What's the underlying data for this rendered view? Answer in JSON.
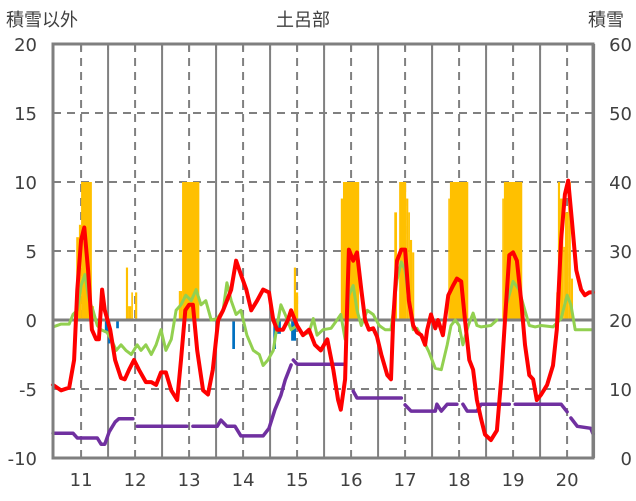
{
  "chart_data": {
    "type": "line",
    "title": "土呂部",
    "ylabel_left": "積雪以外",
    "ylabel_right": "積雪",
    "xlim": [
      10.48,
      20.48
    ],
    "ylim_left": [
      -10,
      20
    ],
    "ylim_right": [
      0,
      60
    ],
    "x_ticks": [
      11,
      12,
      13,
      14,
      15,
      16,
      17,
      18,
      19,
      20
    ],
    "x_tick_labels": [
      "11",
      "12",
      "13",
      "14",
      "15",
      "16",
      "17",
      "18",
      "19",
      "20"
    ],
    "y_left_ticks": [
      -10,
      -5,
      0,
      5,
      10,
      15,
      20
    ],
    "y_left_tick_labels": [
      "-10",
      "-5",
      "0",
      "5",
      "10",
      "15",
      "20"
    ],
    "y_right_ticks": [
      0,
      10,
      20,
      30,
      40,
      50,
      60
    ],
    "y_right_tick_labels": [
      "0",
      "10",
      "20",
      "30",
      "40",
      "50",
      "60"
    ],
    "grid": true,
    "colors": {
      "orange_bars": "#ffc000",
      "blue_bars": "#0070c0",
      "red": "#ff0000",
      "green": "#92d050",
      "purple": "#7030a0",
      "axis": "#7f7f7f"
    },
    "orange_bars": [
      [
        10.91,
        10.96,
        6
      ],
      [
        10.96,
        11.0,
        6.9
      ],
      [
        11.0,
        11.2,
        10
      ],
      [
        11.2,
        11.24,
        1
      ],
      [
        11.83,
        11.87,
        3.8
      ],
      [
        11.87,
        11.93,
        1
      ],
      [
        11.93,
        11.96,
        2
      ],
      [
        12.0,
        12.04,
        2
      ],
      [
        12.81,
        12.87,
        2.1
      ],
      [
        12.87,
        13.19,
        10
      ],
      [
        14.94,
        14.98,
        3.8
      ],
      [
        14.98,
        15.02,
        2
      ],
      [
        15.81,
        15.85,
        8.8
      ],
      [
        15.85,
        16.15,
        10
      ],
      [
        16.8,
        16.85,
        7.8
      ],
      [
        16.89,
        17.02,
        10
      ],
      [
        17.02,
        17.06,
        8.8
      ],
      [
        17.06,
        17.09,
        7.8
      ],
      [
        17.09,
        17.13,
        5.8
      ],
      [
        17.13,
        17.17,
        4.9
      ],
      [
        17.8,
        17.83,
        8.8
      ],
      [
        17.83,
        18.17,
        10
      ],
      [
        18.8,
        18.83,
        8.8
      ],
      [
        18.83,
        19.17,
        10
      ],
      [
        19.17,
        19.19,
        1
      ],
      [
        19.8,
        19.83,
        2
      ],
      [
        19.83,
        19.87,
        10
      ],
      [
        19.87,
        19.93,
        8.8
      ],
      [
        19.93,
        19.96,
        5.3
      ],
      [
        19.96,
        20.02,
        7.8
      ],
      [
        20.02,
        20.07,
        10
      ],
      [
        20.07,
        20.11,
        3
      ]
    ],
    "blue_bars": [
      [
        11.44,
        11.5,
        -0.9
      ],
      [
        11.5,
        11.54,
        -1.7
      ],
      [
        11.65,
        11.7,
        -0.6
      ],
      [
        13.8,
        13.85,
        -2.1
      ],
      [
        14.0,
        14.02,
        -0.6
      ],
      [
        14.56,
        14.61,
        -2.1
      ],
      [
        14.61,
        14.7,
        -1.0
      ],
      [
        14.89,
        14.98,
        -1.5
      ]
    ],
    "red_series": [
      [
        [
          10.48,
          -4.7
        ],
        [
          10.63,
          -5.1
        ],
        [
          10.78,
          -4.9
        ],
        [
          10.87,
          -2.9
        ],
        [
          10.93,
          2.2
        ],
        [
          11.0,
          5.8
        ],
        [
          11.06,
          6.7
        ],
        [
          11.13,
          3.6
        ],
        [
          11.2,
          -0.7
        ],
        [
          11.28,
          -1.4
        ],
        [
          11.33,
          -1.4
        ],
        [
          11.39,
          2.2
        ],
        [
          11.44,
          0.7
        ],
        [
          11.54,
          -0.7
        ],
        [
          11.63,
          -2.9
        ],
        [
          11.74,
          -4.2
        ],
        [
          11.81,
          -4.3
        ],
        [
          11.89,
          -3.6
        ],
        [
          11.98,
          -2.9
        ],
        [
          12.07,
          -3.6
        ],
        [
          12.2,
          -4.5
        ],
        [
          12.3,
          -4.5
        ],
        [
          12.39,
          -4.7
        ],
        [
          12.48,
          -3.8
        ],
        [
          12.57,
          -3.8
        ],
        [
          12.67,
          -5.1
        ],
        [
          12.78,
          -5.8
        ],
        [
          12.85,
          -2.9
        ],
        [
          12.93,
          0.7
        ],
        [
          13.0,
          1.1
        ],
        [
          13.07,
          1.1
        ],
        [
          13.15,
          -2.2
        ],
        [
          13.26,
          -5.1
        ],
        [
          13.35,
          -5.4
        ],
        [
          13.44,
          -3.6
        ],
        [
          13.54,
          0.0
        ],
        [
          13.63,
          0.7
        ],
        [
          13.7,
          1.4
        ],
        [
          13.78,
          2.2
        ],
        [
          13.87,
          4.3
        ],
        [
          13.96,
          3.3
        ],
        [
          14.06,
          2.2
        ],
        [
          14.15,
          0.7
        ],
        [
          14.26,
          1.4
        ],
        [
          14.37,
          2.2
        ],
        [
          14.48,
          2.0
        ],
        [
          14.56,
          0.0
        ],
        [
          14.63,
          -0.7
        ],
        [
          14.74,
          -0.7
        ],
        [
          14.83,
          0.0
        ],
        [
          14.89,
          0.7
        ],
        [
          15.0,
          -0.4
        ],
        [
          15.11,
          -1.1
        ],
        [
          15.22,
          -0.7
        ],
        [
          15.33,
          -1.8
        ],
        [
          15.44,
          -2.2
        ],
        [
          15.56,
          -1.4
        ],
        [
          15.67,
          -3.6
        ],
        [
          15.76,
          -5.8
        ],
        [
          15.81,
          -6.5
        ],
        [
          15.89,
          -4.3
        ],
        [
          15.93,
          1.4
        ],
        [
          15.96,
          5.1
        ],
        [
          16.04,
          4.3
        ],
        [
          16.11,
          4.9
        ],
        [
          16.19,
          2.2
        ],
        [
          16.26,
          0.0
        ],
        [
          16.33,
          -0.7
        ],
        [
          16.41,
          -0.6
        ],
        [
          16.48,
          -1.2
        ],
        [
          16.56,
          -2.5
        ],
        [
          16.67,
          -4.0
        ],
        [
          16.74,
          -4.3
        ],
        [
          16.78,
          0.0
        ],
        [
          16.85,
          4.3
        ],
        [
          16.93,
          5.1
        ],
        [
          17.0,
          5.1
        ],
        [
          17.07,
          1.4
        ],
        [
          17.15,
          -0.4
        ],
        [
          17.22,
          -0.9
        ],
        [
          17.3,
          -1.1
        ],
        [
          17.37,
          -1.8
        ],
        [
          17.41,
          -0.7
        ],
        [
          17.48,
          0.4
        ],
        [
          17.56,
          -0.6
        ],
        [
          17.61,
          0.0
        ],
        [
          17.7,
          -1.1
        ],
        [
          17.8,
          1.8
        ],
        [
          17.89,
          2.5
        ],
        [
          17.96,
          3.0
        ],
        [
          18.04,
          2.8
        ],
        [
          18.11,
          0.0
        ],
        [
          18.19,
          -2.9
        ],
        [
          18.26,
          -3.6
        ],
        [
          18.33,
          -5.8
        ],
        [
          18.41,
          -7.2
        ],
        [
          18.48,
          -8.3
        ],
        [
          18.59,
          -8.7
        ],
        [
          18.7,
          -8.0
        ],
        [
          18.78,
          -4.3
        ],
        [
          18.85,
          0.0
        ],
        [
          18.93,
          4.7
        ],
        [
          19.0,
          4.9
        ],
        [
          19.07,
          4.3
        ],
        [
          19.15,
          1.4
        ],
        [
          19.22,
          -1.8
        ],
        [
          19.3,
          -4.0
        ],
        [
          19.37,
          -4.3
        ],
        [
          19.44,
          -5.8
        ],
        [
          19.52,
          -5.4
        ],
        [
          19.63,
          -4.7
        ],
        [
          19.74,
          -3.3
        ],
        [
          19.81,
          -0.7
        ],
        [
          19.89,
          5.8
        ],
        [
          19.96,
          9.1
        ],
        [
          20.02,
          10.1
        ],
        [
          20.09,
          7.2
        ],
        [
          20.17,
          3.6
        ],
        [
          20.26,
          2.2
        ],
        [
          20.33,
          1.8
        ],
        [
          20.41,
          2.0
        ],
        [
          20.48,
          2.0
        ]
      ]
    ],
    "green_series": [
      [
        [
          10.48,
          -0.5
        ],
        [
          10.63,
          -0.3
        ],
        [
          10.78,
          -0.3
        ],
        [
          10.85,
          0.4
        ],
        [
          10.93,
          0.7
        ],
        [
          11.0,
          2.5
        ],
        [
          11.07,
          3.3
        ],
        [
          11.15,
          1.4
        ],
        [
          11.22,
          0.7
        ],
        [
          11.3,
          -0.4
        ],
        [
          11.37,
          -0.7
        ],
        [
          11.48,
          -0.9
        ],
        [
          11.56,
          -1.4
        ],
        [
          11.65,
          -2.2
        ],
        [
          11.74,
          -1.8
        ],
        [
          11.83,
          -2.2
        ],
        [
          11.93,
          -2.5
        ],
        [
          12.04,
          -1.8
        ],
        [
          12.11,
          -2.2
        ],
        [
          12.2,
          -1.8
        ],
        [
          12.3,
          -2.5
        ],
        [
          12.39,
          -1.8
        ],
        [
          12.48,
          -0.7
        ],
        [
          12.57,
          -2.2
        ],
        [
          12.67,
          -1.4
        ],
        [
          12.76,
          0.7
        ],
        [
          12.85,
          1.1
        ],
        [
          12.94,
          1.8
        ],
        [
          13.04,
          1.4
        ],
        [
          13.13,
          2.2
        ],
        [
          13.22,
          1.1
        ],
        [
          13.31,
          1.4
        ],
        [
          13.41,
          0.0
        ],
        [
          13.52,
          0.1
        ],
        [
          13.63,
          0.7
        ],
        [
          13.7,
          2.7
        ],
        [
          13.78,
          1.4
        ],
        [
          13.87,
          0.4
        ],
        [
          13.96,
          0.7
        ],
        [
          14.07,
          -1.1
        ],
        [
          14.19,
          -2.2
        ],
        [
          14.3,
          -2.5
        ],
        [
          14.37,
          -3.3
        ],
        [
          14.46,
          -2.9
        ],
        [
          14.56,
          -2.2
        ],
        [
          14.63,
          -0.4
        ],
        [
          14.7,
          1.1
        ],
        [
          14.78,
          0.4
        ],
        [
          14.89,
          -0.7
        ],
        [
          15.0,
          -0.4
        ],
        [
          15.11,
          -1.1
        ],
        [
          15.22,
          -0.9
        ],
        [
          15.3,
          0.1
        ],
        [
          15.37,
          -1.1
        ],
        [
          15.48,
          -0.7
        ],
        [
          15.63,
          -0.6
        ],
        [
          15.74,
          0.0
        ],
        [
          15.81,
          0.4
        ],
        [
          15.89,
          -1.4
        ],
        [
          15.96,
          1.8
        ],
        [
          16.04,
          2.5
        ],
        [
          16.11,
          0.7
        ],
        [
          16.19,
          -0.4
        ],
        [
          16.3,
          0.7
        ],
        [
          16.41,
          0.4
        ],
        [
          16.52,
          -0.4
        ],
        [
          16.63,
          -0.7
        ],
        [
          16.74,
          -0.7
        ],
        [
          16.85,
          2.9
        ],
        [
          16.93,
          4.2
        ],
        [
          17.0,
          3.6
        ],
        [
          17.07,
          1.4
        ],
        [
          17.15,
          -0.7
        ],
        [
          17.22,
          -0.6
        ],
        [
          17.33,
          -1.4
        ],
        [
          17.44,
          -2.3
        ],
        [
          17.56,
          -3.5
        ],
        [
          17.67,
          -3.6
        ],
        [
          17.78,
          -1.8
        ],
        [
          17.85,
          -0.4
        ],
        [
          17.93,
          0.0
        ],
        [
          18.0,
          -0.4
        ],
        [
          18.07,
          -1.8
        ],
        [
          18.17,
          -0.4
        ],
        [
          18.26,
          0.5
        ],
        [
          18.33,
          -0.4
        ],
        [
          18.41,
          -0.5
        ],
        [
          18.59,
          -0.4
        ],
        [
          18.7,
          0.0
        ]
      ],
      [
        [
          18.89,
          1.3
        ],
        [
          19.0,
          2.8
        ],
        [
          19.11,
          2.2
        ],
        [
          19.19,
          1.1
        ],
        [
          19.3,
          -0.4
        ],
        [
          19.41,
          -0.5
        ],
        [
          19.52,
          -0.4
        ],
        [
          19.74,
          -0.5
        ],
        [
          19.89,
          0.1
        ],
        [
          20.0,
          1.8
        ],
        [
          20.07,
          1.1
        ],
        [
          20.15,
          -0.7
        ],
        [
          20.3,
          -0.7
        ],
        [
          20.48,
          -0.7
        ]
      ]
    ],
    "purple_series_right_axis": [
      [
        [
          10.48,
          3.6
        ],
        [
          10.85,
          3.6
        ],
        [
          10.93,
          2.9
        ],
        [
          11.04,
          2.9
        ],
        [
          11.3,
          2.9
        ],
        [
          11.37,
          2.0
        ],
        [
          11.44,
          2.0
        ],
        [
          11.52,
          3.8
        ],
        [
          11.63,
          5.2
        ],
        [
          11.7,
          5.7
        ],
        [
          11.96,
          5.7
        ]
      ],
      [
        [
          12.04,
          4.6
        ],
        [
          12.96,
          4.6
        ]
      ],
      [
        [
          13.07,
          4.6
        ],
        [
          13.52,
          4.6
        ],
        [
          13.59,
          5.5
        ],
        [
          13.7,
          4.6
        ],
        [
          13.85,
          4.6
        ],
        [
          13.96,
          3.2
        ],
        [
          14.37,
          3.2
        ],
        [
          14.48,
          4.3
        ],
        [
          14.59,
          7.0
        ],
        [
          14.7,
          9.1
        ],
        [
          14.78,
          11.3
        ],
        [
          14.89,
          13.5
        ]
      ],
      [
        [
          14.93,
          14.2
        ],
        [
          15.0,
          13.6
        ],
        [
          15.22,
          13.6
        ],
        [
          15.89,
          13.6
        ]
      ],
      [
        [
          16.04,
          9.7
        ],
        [
          16.11,
          8.7
        ],
        [
          16.93,
          8.7
        ]
      ],
      [
        [
          17.0,
          7.7
        ],
        [
          17.11,
          6.8
        ],
        [
          17.56,
          6.8
        ],
        [
          17.59,
          7.8
        ],
        [
          17.67,
          6.8
        ],
        [
          17.78,
          7.8
        ],
        [
          17.96,
          7.8
        ]
      ],
      [
        [
          18.07,
          7.8
        ],
        [
          18.15,
          6.8
        ],
        [
          18.33,
          6.8
        ],
        [
          18.41,
          7.8
        ],
        [
          18.93,
          7.8
        ]
      ],
      [
        [
          19.04,
          7.8
        ],
        [
          19.89,
          7.8
        ],
        [
          20.0,
          6.7
        ]
      ],
      [
        [
          20.07,
          5.8
        ],
        [
          20.19,
          4.6
        ],
        [
          20.44,
          4.3
        ],
        [
          20.48,
          3.5
        ]
      ]
    ]
  }
}
